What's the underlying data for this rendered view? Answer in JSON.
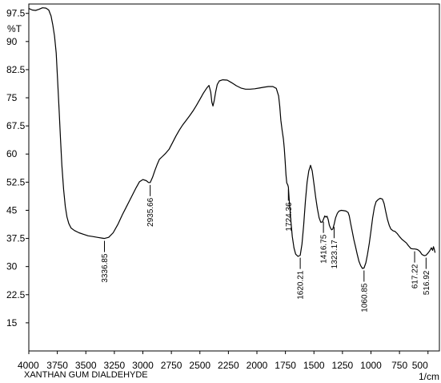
{
  "chart_data": {
    "type": "line",
    "title": "",
    "sample_name": "XANTHAN GUM DIALDEHYDE",
    "ylabel": "%T",
    "xlabel": "1/cm",
    "xlim": [
      4000,
      400
    ],
    "ylim": [
      7.5,
      100
    ],
    "x_reversed": true,
    "grid": false,
    "x_ticks": [
      4000,
      3750,
      3500,
      3250,
      3000,
      2750,
      2500,
      2250,
      2000,
      1750,
      1500,
      1250,
      1000,
      750,
      500
    ],
    "y_ticks": [
      "97.5",
      "90",
      "82.5",
      "75",
      "67.5",
      "60",
      "52.5",
      "45",
      "37.5",
      "30",
      "22.5",
      "15"
    ],
    "series": [
      {
        "color": "#000000",
        "points": [
          [
            4000,
            98.8
          ],
          [
            3970,
            98.4
          ],
          [
            3940,
            98.3
          ],
          [
            3910,
            98.6
          ],
          [
            3880,
            99.0
          ],
          [
            3850,
            98.9
          ],
          [
            3825,
            98.4
          ],
          [
            3805,
            96.8
          ],
          [
            3790,
            94.5
          ],
          [
            3775,
            91.5
          ],
          [
            3760,
            87.0
          ],
          [
            3748,
            80.0
          ],
          [
            3735,
            72.0
          ],
          [
            3722,
            64.0
          ],
          [
            3710,
            57.0
          ],
          [
            3695,
            50.5
          ],
          [
            3680,
            46.0
          ],
          [
            3665,
            43.2
          ],
          [
            3650,
            41.5
          ],
          [
            3630,
            40.3
          ],
          [
            3600,
            39.6
          ],
          [
            3560,
            39.0
          ],
          [
            3520,
            38.6
          ],
          [
            3480,
            38.2
          ],
          [
            3440,
            38.0
          ],
          [
            3400,
            37.8
          ],
          [
            3360,
            37.6
          ],
          [
            3336.85,
            37.5
          ],
          [
            3300,
            37.8
          ],
          [
            3260,
            39.0
          ],
          [
            3220,
            41.2
          ],
          [
            3180,
            43.8
          ],
          [
            3140,
            46.2
          ],
          [
            3100,
            48.6
          ],
          [
            3060,
            51.0
          ],
          [
            3030,
            52.6
          ],
          [
            3000,
            53.2
          ],
          [
            2970,
            52.9
          ],
          [
            2950,
            52.4
          ],
          [
            2935.66,
            52.4
          ],
          [
            2915,
            53.8
          ],
          [
            2895,
            55.6
          ],
          [
            2875,
            57.2
          ],
          [
            2855,
            58.6
          ],
          [
            2830,
            59.3
          ],
          [
            2800,
            60.2
          ],
          [
            2770,
            61.3
          ],
          [
            2740,
            63.0
          ],
          [
            2710,
            64.8
          ],
          [
            2680,
            66.4
          ],
          [
            2650,
            67.8
          ],
          [
            2620,
            69.0
          ],
          [
            2590,
            70.2
          ],
          [
            2560,
            71.5
          ],
          [
            2530,
            73.0
          ],
          [
            2500,
            74.6
          ],
          [
            2470,
            76.2
          ],
          [
            2440,
            77.6
          ],
          [
            2420,
            78.3
          ],
          [
            2405,
            76.5
          ],
          [
            2395,
            73.8
          ],
          [
            2385,
            72.8
          ],
          [
            2375,
            74.2
          ],
          [
            2362,
            76.5
          ],
          [
            2348,
            78.5
          ],
          [
            2330,
            79.5
          ],
          [
            2300,
            79.8
          ],
          [
            2260,
            79.7
          ],
          [
            2220,
            79.0
          ],
          [
            2180,
            78.2
          ],
          [
            2140,
            77.6
          ],
          [
            2100,
            77.3
          ],
          [
            2060,
            77.3
          ],
          [
            2020,
            77.4
          ],
          [
            1980,
            77.6
          ],
          [
            1940,
            77.8
          ],
          [
            1900,
            78.0
          ],
          [
            1860,
            78.0
          ],
          [
            1830,
            77.5
          ],
          [
            1810,
            75.5
          ],
          [
            1800,
            72.8
          ],
          [
            1790,
            69.0
          ],
          [
            1780,
            66.5
          ],
          [
            1768,
            64.0
          ],
          [
            1760,
            61.5
          ],
          [
            1752,
            58.0
          ],
          [
            1745,
            54.5
          ],
          [
            1738,
            52.3
          ],
          [
            1730,
            51.8
          ],
          [
            1724.36,
            51.2
          ],
          [
            1715,
            47.0
          ],
          [
            1702,
            42.0
          ],
          [
            1690,
            38.0
          ],
          [
            1675,
            35.0
          ],
          [
            1660,
            33.3
          ],
          [
            1640,
            32.7
          ],
          [
            1620.21,
            33.0
          ],
          [
            1605,
            36.0
          ],
          [
            1590,
            41.0
          ],
          [
            1575,
            47.5
          ],
          [
            1560,
            52.5
          ],
          [
            1545,
            55.5
          ],
          [
            1530,
            57.0
          ],
          [
            1515,
            55.5
          ],
          [
            1500,
            52.0
          ],
          [
            1485,
            48.5
          ],
          [
            1470,
            45.5
          ],
          [
            1455,
            43.0
          ],
          [
            1440,
            41.8
          ],
          [
            1425,
            41.9
          ],
          [
            1416.75,
            42.6
          ],
          [
            1405,
            43.5
          ],
          [
            1395,
            43.2
          ],
          [
            1385,
            43.4
          ],
          [
            1375,
            42.5
          ],
          [
            1365,
            41.0
          ],
          [
            1355,
            40.3
          ],
          [
            1345,
            39.8
          ],
          [
            1335,
            40.0
          ],
          [
            1323.17,
            41.2
          ],
          [
            1310,
            43.0
          ],
          [
            1295,
            44.2
          ],
          [
            1280,
            44.8
          ],
          [
            1260,
            45.0
          ],
          [
            1240,
            44.9
          ],
          [
            1220,
            44.8
          ],
          [
            1200,
            44.4
          ],
          [
            1190,
            43.5
          ],
          [
            1178,
            41.5
          ],
          [
            1165,
            39.5
          ],
          [
            1150,
            37.2
          ],
          [
            1135,
            35.2
          ],
          [
            1120,
            33.2
          ],
          [
            1105,
            31.4
          ],
          [
            1090,
            30.2
          ],
          [
            1075,
            29.5
          ],
          [
            1060.85,
            29.6
          ],
          [
            1045,
            31.0
          ],
          [
            1030,
            33.3
          ],
          [
            1015,
            36.2
          ],
          [
            1000,
            39.5
          ],
          [
            985,
            43.0
          ],
          [
            970,
            45.8
          ],
          [
            955,
            47.3
          ],
          [
            940,
            47.8
          ],
          [
            920,
            48.2
          ],
          [
            900,
            48.0
          ],
          [
            885,
            46.8
          ],
          [
            870,
            44.6
          ],
          [
            855,
            42.5
          ],
          [
            840,
            41.0
          ],
          [
            825,
            40.0
          ],
          [
            805,
            39.5
          ],
          [
            790,
            39.4
          ],
          [
            770,
            38.8
          ],
          [
            750,
            38.0
          ],
          [
            730,
            37.3
          ],
          [
            710,
            36.8
          ],
          [
            690,
            36.3
          ],
          [
            670,
            35.5
          ],
          [
            650,
            34.8
          ],
          [
            630,
            34.7
          ],
          [
            617.22,
            34.7
          ],
          [
            600,
            34.6
          ],
          [
            585,
            34.4
          ],
          [
            570,
            34.0
          ],
          [
            555,
            33.3
          ],
          [
            540,
            33.0
          ],
          [
            530,
            32.9
          ],
          [
            516.92,
            33.0
          ],
          [
            500,
            33.6
          ],
          [
            485,
            34.2
          ],
          [
            470,
            35.0
          ],
          [
            460,
            34.3
          ],
          [
            452,
            35.3
          ],
          [
            445,
            34.6
          ],
          [
            438,
            33.7
          ]
        ]
      }
    ],
    "peak_labels": [
      {
        "x": 3336.85,
        "y": 37.5,
        "label": "3336.85"
      },
      {
        "x": 2935.66,
        "y": 52.4,
        "label": "2935.66"
      },
      {
        "x": 1724.36,
        "y": 51.2,
        "label": "1724.36"
      },
      {
        "x": 1620.21,
        "y": 33.0,
        "label": "1620.21"
      },
      {
        "x": 1416.75,
        "y": 42.6,
        "label": "1416.75"
      },
      {
        "x": 1323.17,
        "y": 41.2,
        "label": "1323.17"
      },
      {
        "x": 1060.85,
        "y": 29.6,
        "label": "1060.85"
      },
      {
        "x": 617.22,
        "y": 34.7,
        "label": "617.22"
      },
      {
        "x": 516.92,
        "y": 33.0,
        "label": "516.92"
      }
    ]
  }
}
